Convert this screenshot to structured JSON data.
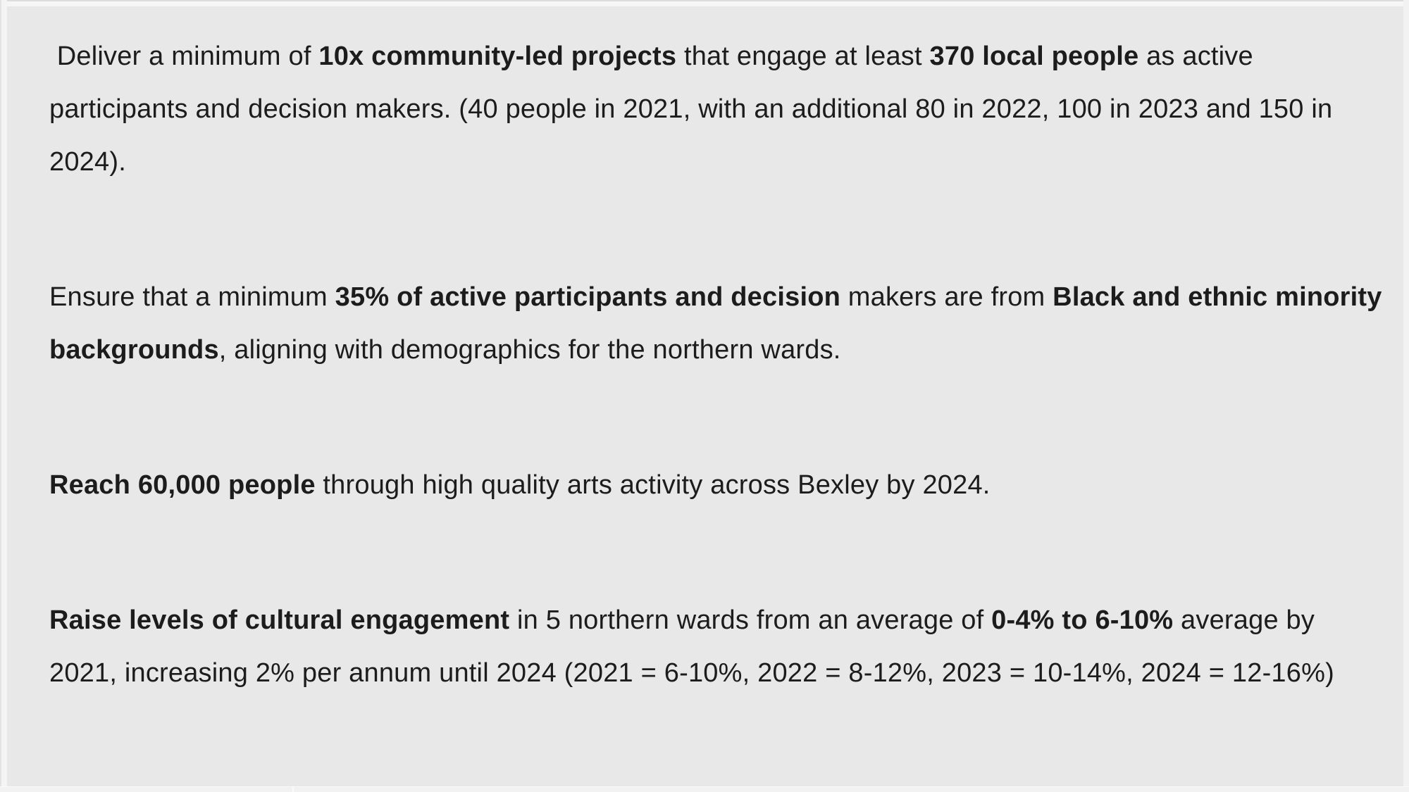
{
  "page": {
    "background": "#e8e8e8",
    "text_color": "#1c1c1c",
    "edge_color": "#f4f4f4"
  },
  "document": {
    "paragraphs": [
      {
        "lines": [
          {
            "segments": [
              {
                "text": " Deliver a minimum of ",
                "bold": false
              },
              {
                "text": "10x community-led projects",
                "bold": true
              },
              {
                "text": " that engage at least ",
                "bold": false
              },
              {
                "text": "370 local people",
                "bold": true
              },
              {
                "text": " as active",
                "bold": false
              }
            ]
          },
          {
            "segments": [
              {
                "text": "participants and decision makers. (40 people in 2021, with an additional 80 in 2022, 100 in 2023 and 150 in",
                "bold": false
              }
            ]
          },
          {
            "segments": [
              {
                "text": "2024).",
                "bold": false
              }
            ]
          }
        ]
      },
      {
        "lines": [
          {
            "segments": [
              {
                "text": "Ensure that a minimum ",
                "bold": false
              },
              {
                "text": "35% of active participants and decision",
                "bold": true
              },
              {
                "text": " makers are from ",
                "bold": false
              },
              {
                "text": "Black and ethnic minority",
                "bold": true
              }
            ]
          },
          {
            "segments": [
              {
                "text": "backgrounds",
                "bold": true
              },
              {
                "text": ", aligning with demographics for the northern wards.",
                "bold": false
              }
            ]
          }
        ]
      },
      {
        "lines": [
          {
            "segments": [
              {
                "text": "Reach 60,000 people",
                "bold": true
              },
              {
                "text": " through high quality arts activity across Bexley by 2024.",
                "bold": false
              }
            ]
          }
        ]
      },
      {
        "lines": [
          {
            "segments": [
              {
                "text": "Raise levels of cultural engagement",
                "bold": true
              },
              {
                "text": " in 5 northern wards from an average of ",
                "bold": false
              },
              {
                "text": "0-4% to 6-10%",
                "bold": true
              },
              {
                "text": " average by",
                "bold": false
              }
            ]
          },
          {
            "segments": [
              {
                "text": "2021, increasing 2% per annum until 2024 (2021 = 6-10%, 2022 = 8-12%, 2023 = 10-14%, 2024 = 12-16%)",
                "bold": false
              }
            ]
          }
        ]
      }
    ]
  }
}
